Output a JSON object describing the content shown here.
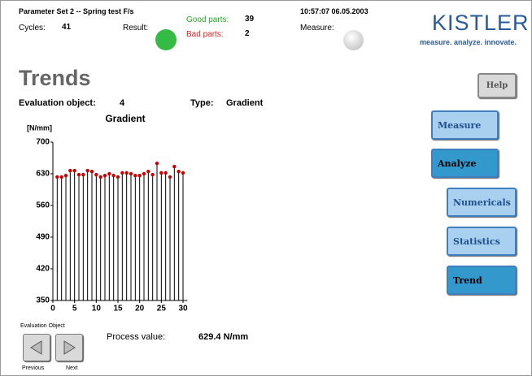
{
  "header": {
    "parameter_set": "Parameter Set 2  --  Spring test F/s",
    "cycles_label": "Cycles:",
    "cycles": "41",
    "result_label": "Result:",
    "good_label": "Good parts:",
    "good": "39",
    "bad_label": "Bad parts:",
    "bad": "2",
    "timestamp": "10:57:07  06.05.2003",
    "measure_label": "Measure:",
    "logo": "KISTLER",
    "slogan": "measure. analyze. innovate."
  },
  "page_title": "Trends",
  "evaluation": {
    "object_label": "Evaluation object:",
    "object": "4",
    "type_label": "Type:",
    "type": "Gradient"
  },
  "buttons": {
    "help": "Help",
    "measure": "Measure",
    "analyze": "Analyze",
    "numericals": "Numericals",
    "statistics": "Statistics",
    "trend": "Trend"
  },
  "footer": {
    "group_label": "Evaluation Object",
    "previous": "Previous",
    "next": "Next",
    "process_label": "Process value:",
    "process_value": "629.4 N/mm"
  },
  "chart_data": {
    "type": "stem",
    "title": "Gradient",
    "y_label": "[N/mm]",
    "x": [
      1,
      2,
      3,
      4,
      5,
      6,
      7,
      8,
      9,
      10,
      11,
      12,
      13,
      14,
      15,
      16,
      17,
      18,
      19,
      20,
      21,
      22,
      23,
      24,
      25,
      26,
      27,
      28,
      29,
      30
    ],
    "values": [
      623,
      623,
      626,
      637,
      637,
      628,
      628,
      637,
      635,
      628,
      623,
      626,
      630,
      626,
      623,
      632,
      632,
      630,
      626,
      626,
      630,
      635,
      628,
      653,
      632,
      632,
      623,
      646,
      635,
      632
    ],
    "color": "#cc0000",
    "xlim": [
      0,
      31
    ],
    "ylim": [
      350,
      700
    ],
    "xticks": [
      0,
      5,
      10,
      15,
      20,
      25,
      30
    ],
    "yticks": [
      350,
      420,
      490,
      560,
      630,
      700
    ]
  }
}
